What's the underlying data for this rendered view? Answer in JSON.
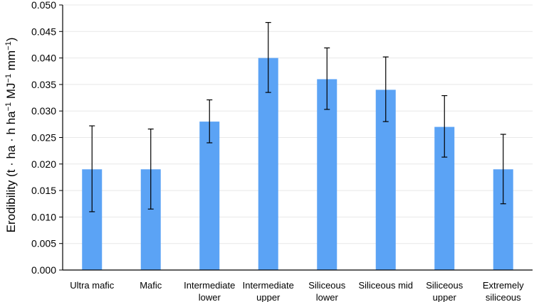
{
  "chart_data": {
    "type": "bar",
    "title": "",
    "xlabel": "",
    "ylabel": "Erodibility (t · ha · h ha⁻¹ MJ⁻¹ mm⁻¹)",
    "ylabel_parts": [
      "Erodibility (t · ha · h ha",
      "−1",
      " MJ",
      "−1",
      " mm",
      "−1",
      ")"
    ],
    "ylim": [
      0,
      0.05
    ],
    "yticks": [
      "0.000",
      "0.005",
      "0.010",
      "0.015",
      "0.020",
      "0.025",
      "0.030",
      "0.035",
      "0.040",
      "0.045",
      "0.050"
    ],
    "grid": true,
    "legend": "none",
    "categories": [
      [
        "Ultra mafic"
      ],
      [
        "Mafic"
      ],
      [
        "Intermediate",
        "lower"
      ],
      [
        "Intermediate",
        "upper"
      ],
      [
        "Siliceous",
        "lower"
      ],
      [
        "Siliceous mid"
      ],
      [
        "Siliceous",
        "upper"
      ],
      [
        "Extremely",
        "siliceous"
      ]
    ],
    "values": [
      0.019,
      0.019,
      0.028,
      0.04,
      0.036,
      0.034,
      0.027,
      0.019
    ],
    "error_low": [
      0.011,
      0.0115,
      0.024,
      0.0335,
      0.0303,
      0.028,
      0.0213,
      0.0125
    ],
    "error_high": [
      0.0272,
      0.0266,
      0.0321,
      0.0467,
      0.0419,
      0.0402,
      0.0329,
      0.0256
    ],
    "colors": {
      "bar": "#5ba3f5",
      "error": "#000000",
      "grid": "#e8e8e8",
      "axis": "#000000"
    }
  }
}
